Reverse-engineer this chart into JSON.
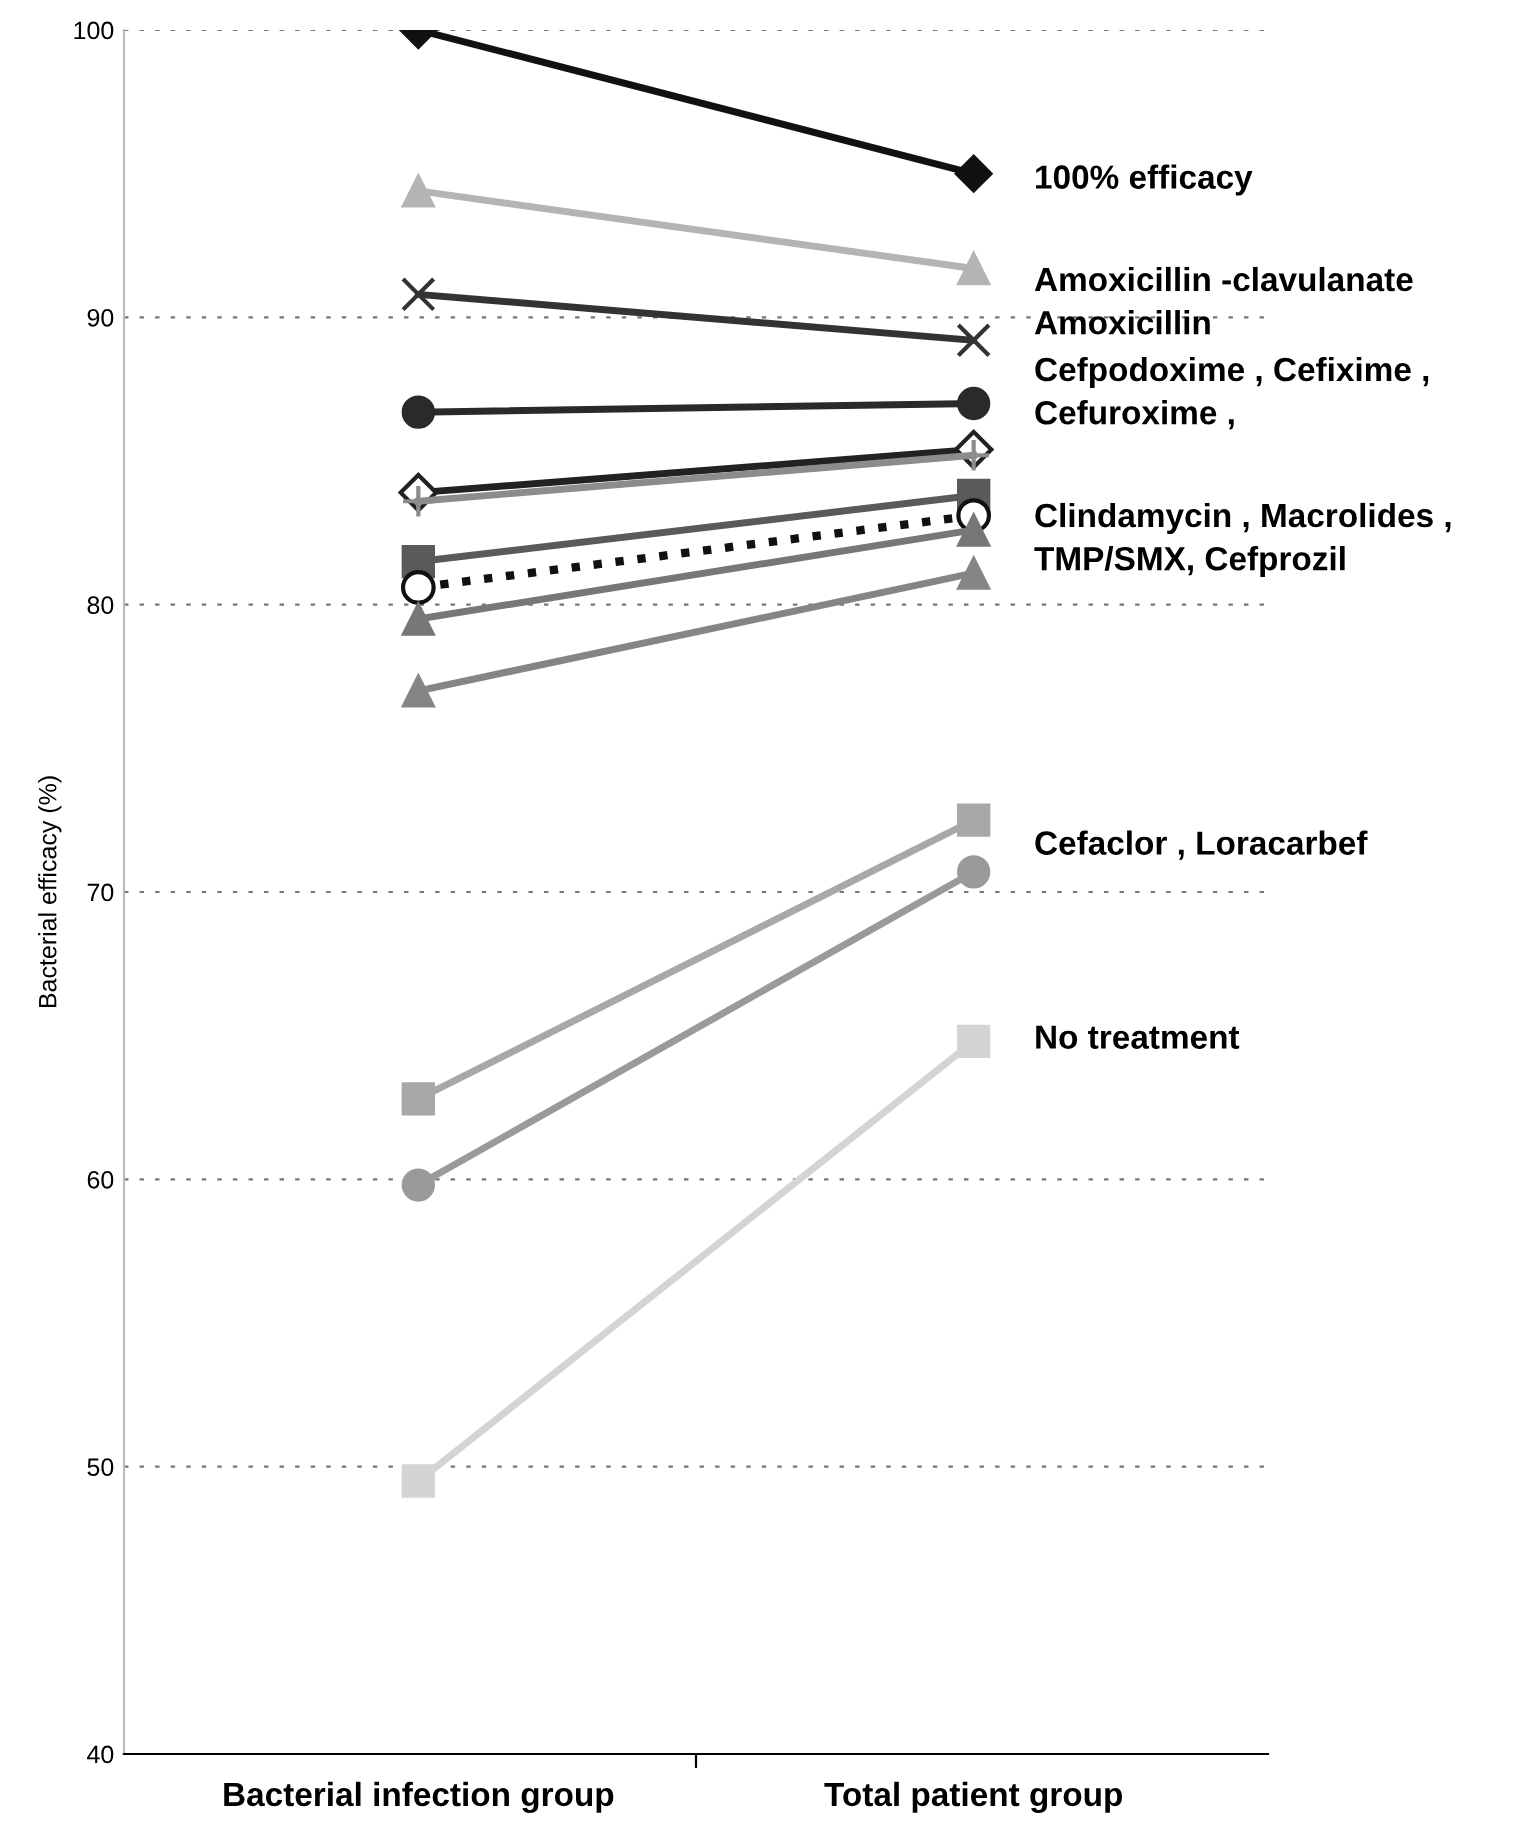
{
  "chart_data": {
    "type": "line",
    "ylabel": "Bacterial efficacy (%)",
    "categories": [
      "Bacterial infection group",
      "Total patient group"
    ],
    "ylim": [
      40,
      100
    ],
    "yticks": [
      40,
      50,
      60,
      70,
      80,
      90,
      100
    ],
    "grid": "y",
    "legend": false,
    "series": [
      {
        "color": "#111111",
        "marker": "diamond",
        "values": [
          100,
          95.0
        ]
      },
      {
        "color": "#b4b4b4",
        "marker": "triangle",
        "values": [
          94.4,
          91.7
        ]
      },
      {
        "color": "#333333",
        "marker": "cross",
        "values": [
          90.8,
          89.2
        ]
      },
      {
        "color": "#2a2a2a",
        "marker": "circle",
        "values": [
          86.7,
          87.0
        ]
      },
      {
        "color": "#222222",
        "marker": "diamond",
        "values": [
          83.9,
          85.4
        ]
      },
      {
        "color": "#8c8c8c",
        "marker": "plus",
        "values": [
          83.6,
          85.2
        ]
      },
      {
        "color": "#5a5a5a",
        "marker": "square",
        "values": [
          81.5,
          83.8
        ]
      },
      {
        "color": "#111111",
        "marker": "circle",
        "line_style": "dotted",
        "values": [
          80.6,
          83.1
        ]
      },
      {
        "color": "#777777",
        "marker": "triangle",
        "values": [
          79.5,
          82.6
        ]
      },
      {
        "color": "#858585",
        "marker": "triangle",
        "values": [
          77.0,
          81.1
        ]
      },
      {
        "color": "#a8a8a8",
        "marker": "square",
        "values": [
          62.8,
          72.5
        ]
      },
      {
        "color": "#9a9a9a",
        "marker": "circle",
        "values": [
          59.8,
          70.7
        ]
      },
      {
        "color": "#d4d4d4",
        "marker": "square",
        "values": [
          49.5,
          64.8
        ]
      }
    ],
    "annotations": [
      "100% efficacy",
      "Amoxicillin -clavulanate\nAmoxicillin",
      "Cefpodoxime , Cefixime ,\nCefuroxime ,",
      "Clindamycin , Macrolides ,\nTMP/SMX, Cefprozil",
      "Cefaclor , Loracarbef",
      "No treatment"
    ]
  }
}
